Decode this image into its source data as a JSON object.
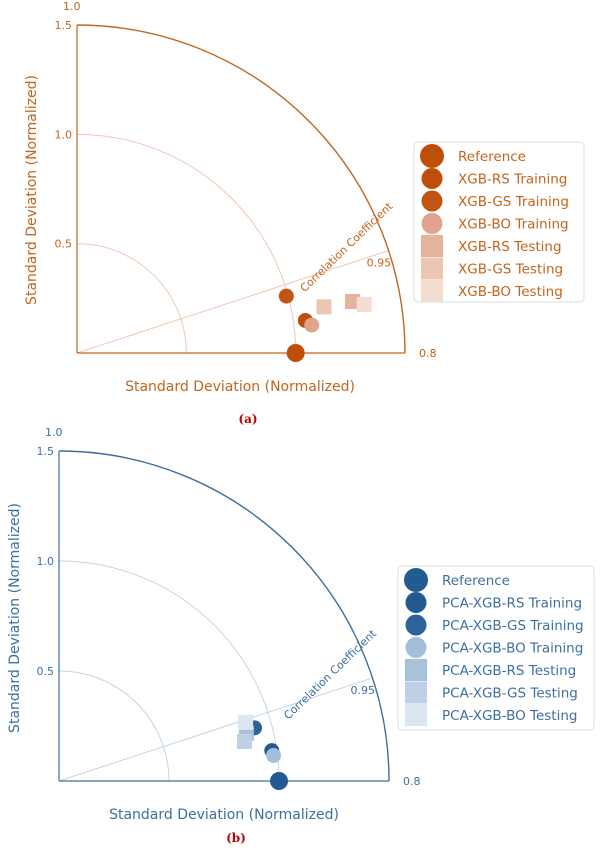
{
  "chart_data": [
    {
      "type": "scatter",
      "subtype": "taylor-diagram",
      "panel_label": "(a)",
      "xlabel": "Standard Deviation (Normalized)",
      "ylabel": "Standard Deviation (Normalized)",
      "std_ticks": [
        "0.5",
        "1.0",
        "1.5"
      ],
      "std_range": [
        0,
        1.5
      ],
      "corr_range": [
        0.8,
        1.0
      ],
      "corr_axis_title": "Correlation Coefficient",
      "corr_tick_labels": [
        "1.0",
        "0.95",
        "0.8"
      ],
      "color": "#c2651e",
      "grid_color": "#ecc9b4",
      "legend_placement": "right",
      "series": [
        {
          "name": "Reference",
          "marker": "circle",
          "color": "#c04e0b",
          "points": [
            [
              1.0,
              1.0
            ]
          ]
        },
        {
          "name": "XGB-RS Training",
          "marker": "circle",
          "color": "#c04e0b",
          "points": [
            [
              0.99,
              1.055
            ]
          ]
        },
        {
          "name": "XGB-GS Training",
          "marker": "circle",
          "color": "#c25515",
          "points": [
            [
              0.965,
              0.992
            ]
          ]
        },
        {
          "name": "XGB-BO Training",
          "marker": "circle",
          "color": "#dfa58a",
          "points": [
            [
              0.993,
              1.081
            ]
          ]
        },
        {
          "name": "XGB-RS Testing",
          "marker": "square",
          "color": "#e5b29a",
          "points": [
            [
              0.983,
              1.282
            ]
          ]
        },
        {
          "name": "XGB-GS Testing",
          "marker": "square",
          "color": "#ecc6b2",
          "points": [
            [
              0.983,
              1.149
            ]
          ]
        },
        {
          "name": "XGB-BO Testing",
          "marker": "square",
          "color": "#f3ddd1",
          "points": [
            [
              0.986,
              1.332
            ]
          ]
        }
      ]
    },
    {
      "type": "scatter",
      "subtype": "taylor-diagram",
      "panel_label": "(b)",
      "xlabel": "Standard Deviation (Normalized)",
      "ylabel": "Standard Deviation (Normalized)",
      "std_ticks": [
        "0.5",
        "1.0",
        "1.5"
      ],
      "std_range": [
        0,
        1.5
      ],
      "corr_range": [
        0.8,
        1.0
      ],
      "corr_axis_title": "Correlation Coefficient",
      "corr_tick_labels": [
        "1.0",
        "0.95",
        "0.8"
      ],
      "color": "#3d6f9f",
      "grid_color": "#c2d4e7",
      "legend_placement": "right",
      "series": [
        {
          "name": "Reference",
          "marker": "circle",
          "color": "#245a92",
          "points": [
            [
              1.0,
              1.0
            ]
          ]
        },
        {
          "name": "PCA-XGB-RS Training",
          "marker": "circle",
          "color": "#245a92",
          "points": [
            [
              0.99,
              0.977
            ]
          ]
        },
        {
          "name": "PCA-XGB-GS Training",
          "marker": "circle",
          "color": "#2e6399",
          "points": [
            [
              0.965,
              0.921
            ]
          ]
        },
        {
          "name": "PCA-XGB-BO Training",
          "marker": "circle",
          "color": "#a4bfda",
          "points": [
            [
              0.993,
              0.982
            ]
          ]
        },
        {
          "name": "PCA-XGB-RS Testing",
          "marker": "square",
          "color": "#a9c2dc",
          "points": [
            [
              0.969,
              0.879
            ]
          ]
        },
        {
          "name": "PCA-XGB-GS Testing",
          "marker": "square",
          "color": "#bdd0e5",
          "points": [
            [
              0.978,
              0.862
            ]
          ]
        },
        {
          "name": "PCA-XGB-BO Testing",
          "marker": "square",
          "color": "#dbe6f2",
          "points": [
            [
              0.954,
              0.889
            ]
          ]
        }
      ]
    }
  ]
}
